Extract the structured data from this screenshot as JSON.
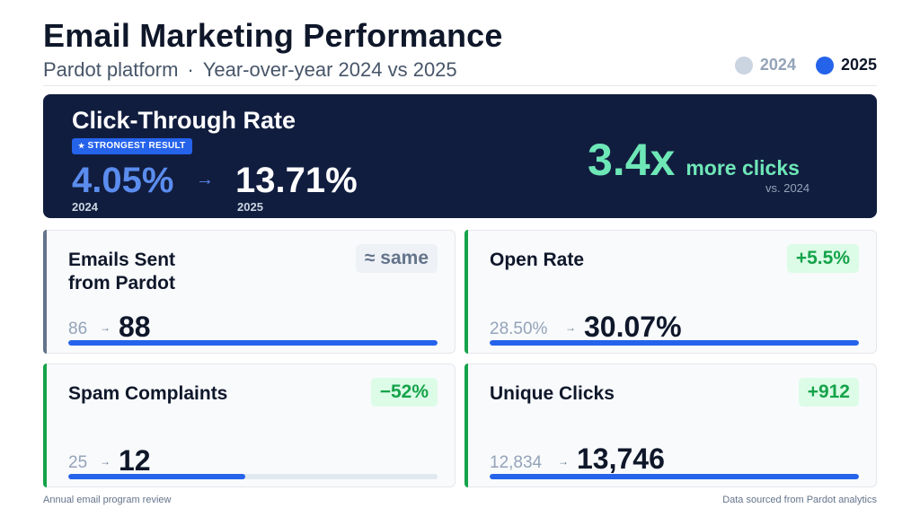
{
  "header": {
    "title": "Email Marketing Performance",
    "subtitle_platform": "Pardot platform",
    "subtitle_sep": "·",
    "subtitle_period": "Year-over-year 2024 vs 2025"
  },
  "legend": [
    {
      "label": "2024",
      "color": "#cbd5e1"
    },
    {
      "label": "2025",
      "color": "#2563eb"
    }
  ],
  "hero": {
    "title": "Click-Through Rate",
    "badge": "STRONGEST RESULT",
    "old_value": "4.05%",
    "arrow": "→",
    "new_value": "13.71%",
    "old_year": "2024",
    "new_year": "2025",
    "multiplier": "3.4x",
    "multiplier_text": "more clicks",
    "vs": "vs. 2024"
  },
  "cards": [
    {
      "label_line1": "Emails Sent",
      "label_line2": "from Pardot",
      "change": "≈ same",
      "old": "86",
      "arrow": "→",
      "new": "88",
      "progress": 1.0,
      "accent": "#64748b"
    },
    {
      "label_line1": "Open Rate",
      "label_line2": "",
      "change": "+5.5%",
      "old": "28.50%",
      "arrow": "→",
      "new": "30.07%",
      "progress": 1.0,
      "accent": "#16a34a"
    },
    {
      "label_line1": "Spam Complaints",
      "label_line2": "",
      "change": "−52%",
      "old": "25",
      "arrow": "→",
      "new": "12",
      "progress": 0.48,
      "accent": "#16a34a"
    },
    {
      "label_line1": "Unique Clicks",
      "label_line2": "",
      "change": "+912",
      "old": "12,834",
      "arrow": "→",
      "new": "13,746",
      "progress": 1.0,
      "accent": "#16a34a"
    }
  ],
  "footer": {
    "left": "Annual email program review",
    "right": "Data sourced from Pardot analytics"
  }
}
